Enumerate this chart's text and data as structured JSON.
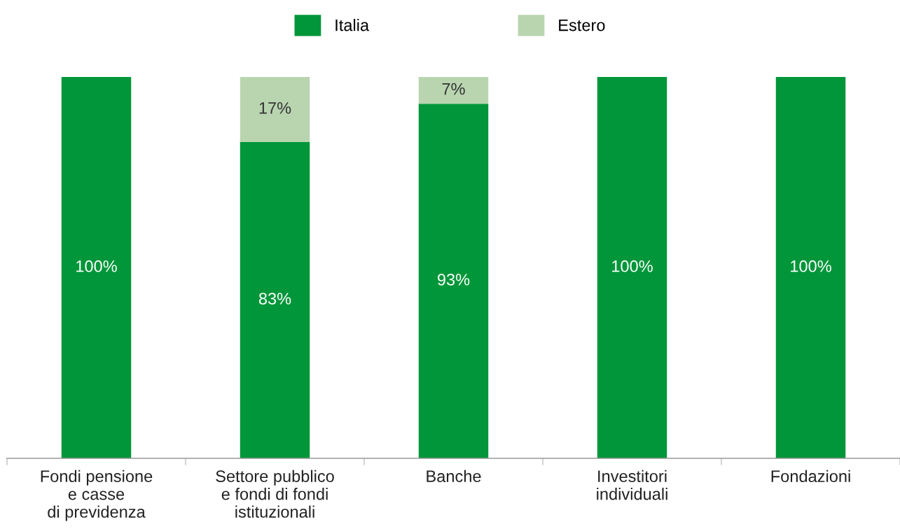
{
  "chart_data": {
    "type": "bar",
    "stacked": true,
    "legend": "top",
    "grid": false,
    "categories": [
      "Fondi pensione\ne casse\ndi previdenza",
      "Settore pubblico\ne fondi di fondi\nistituzionali",
      "Banche",
      "Investitori\nindividuali",
      "Fondazioni"
    ],
    "series": [
      {
        "name": "Italia",
        "color": "#009639",
        "values": [
          100,
          83,
          93,
          100,
          100
        ],
        "value_labels": [
          "100%",
          "83%",
          "93%",
          "100%",
          "100%"
        ]
      },
      {
        "name": "Estero",
        "color": "#b9d5b0",
        "values": [
          null,
          17,
          7,
          null,
          null
        ],
        "value_labels": [
          null,
          "17%",
          "7%",
          null,
          null
        ]
      }
    ]
  }
}
